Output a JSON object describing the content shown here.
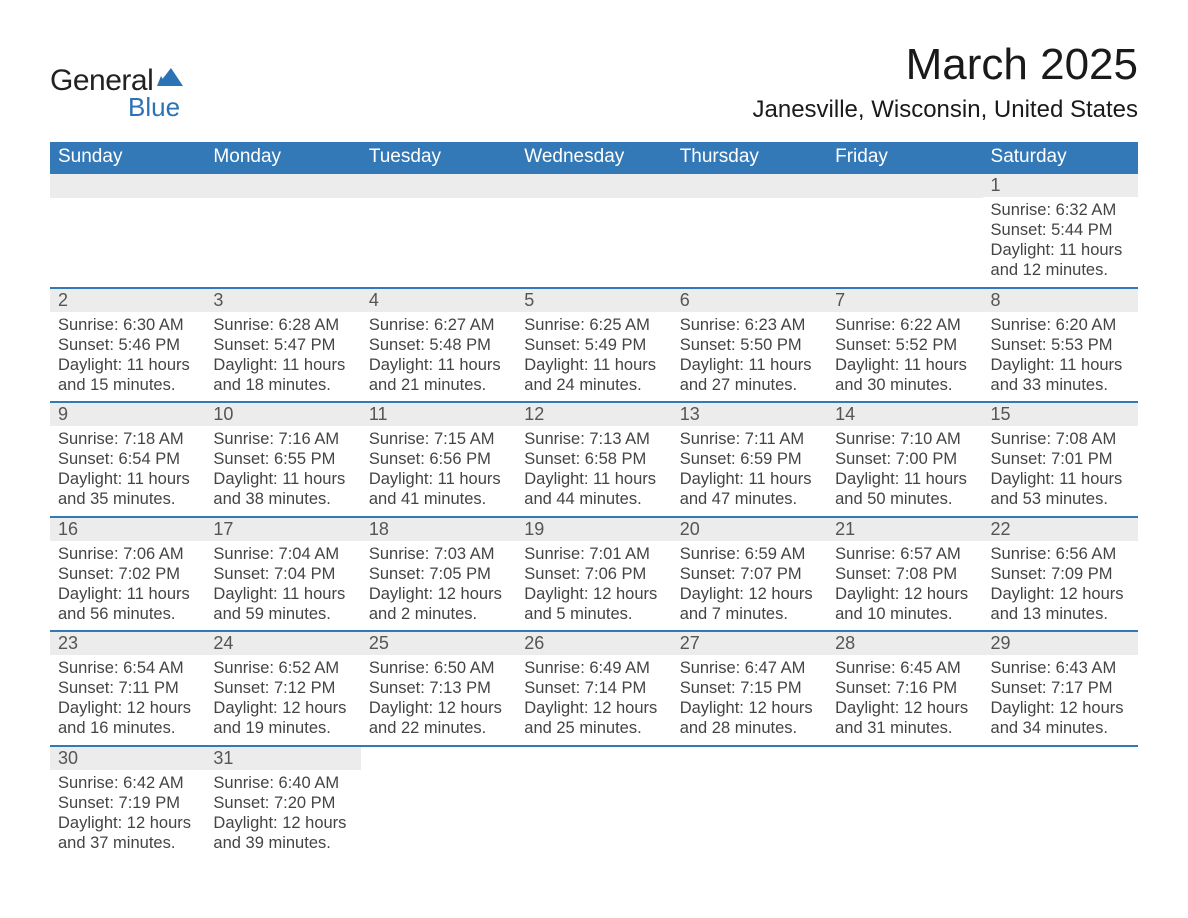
{
  "logo": {
    "general": "General",
    "blue": "Blue",
    "flag_color": "#2b73b5"
  },
  "title": "March 2025",
  "location": "Janesville, Wisconsin, United States",
  "colors": {
    "header_bg": "#3379b7",
    "header_text": "#ffffff",
    "daynum_bg": "#ececec",
    "daynum_text": "#555555",
    "body_text": "#444444",
    "row_border": "#3379b7"
  },
  "days_of_week": [
    "Sunday",
    "Monday",
    "Tuesday",
    "Wednesday",
    "Thursday",
    "Friday",
    "Saturday"
  ],
  "weeks": [
    [
      null,
      null,
      null,
      null,
      null,
      null,
      {
        "n": "1",
        "sr": "Sunrise: 6:32 AM",
        "ss": "Sunset: 5:44 PM",
        "d1": "Daylight: 11 hours",
        "d2": "and 12 minutes."
      }
    ],
    [
      {
        "n": "2",
        "sr": "Sunrise: 6:30 AM",
        "ss": "Sunset: 5:46 PM",
        "d1": "Daylight: 11 hours",
        "d2": "and 15 minutes."
      },
      {
        "n": "3",
        "sr": "Sunrise: 6:28 AM",
        "ss": "Sunset: 5:47 PM",
        "d1": "Daylight: 11 hours",
        "d2": "and 18 minutes."
      },
      {
        "n": "4",
        "sr": "Sunrise: 6:27 AM",
        "ss": "Sunset: 5:48 PM",
        "d1": "Daylight: 11 hours",
        "d2": "and 21 minutes."
      },
      {
        "n": "5",
        "sr": "Sunrise: 6:25 AM",
        "ss": "Sunset: 5:49 PM",
        "d1": "Daylight: 11 hours",
        "d2": "and 24 minutes."
      },
      {
        "n": "6",
        "sr": "Sunrise: 6:23 AM",
        "ss": "Sunset: 5:50 PM",
        "d1": "Daylight: 11 hours",
        "d2": "and 27 minutes."
      },
      {
        "n": "7",
        "sr": "Sunrise: 6:22 AM",
        "ss": "Sunset: 5:52 PM",
        "d1": "Daylight: 11 hours",
        "d2": "and 30 minutes."
      },
      {
        "n": "8",
        "sr": "Sunrise: 6:20 AM",
        "ss": "Sunset: 5:53 PM",
        "d1": "Daylight: 11 hours",
        "d2": "and 33 minutes."
      }
    ],
    [
      {
        "n": "9",
        "sr": "Sunrise: 7:18 AM",
        "ss": "Sunset: 6:54 PM",
        "d1": "Daylight: 11 hours",
        "d2": "and 35 minutes."
      },
      {
        "n": "10",
        "sr": "Sunrise: 7:16 AM",
        "ss": "Sunset: 6:55 PM",
        "d1": "Daylight: 11 hours",
        "d2": "and 38 minutes."
      },
      {
        "n": "11",
        "sr": "Sunrise: 7:15 AM",
        "ss": "Sunset: 6:56 PM",
        "d1": "Daylight: 11 hours",
        "d2": "and 41 minutes."
      },
      {
        "n": "12",
        "sr": "Sunrise: 7:13 AM",
        "ss": "Sunset: 6:58 PM",
        "d1": "Daylight: 11 hours",
        "d2": "and 44 minutes."
      },
      {
        "n": "13",
        "sr": "Sunrise: 7:11 AM",
        "ss": "Sunset: 6:59 PM",
        "d1": "Daylight: 11 hours",
        "d2": "and 47 minutes."
      },
      {
        "n": "14",
        "sr": "Sunrise: 7:10 AM",
        "ss": "Sunset: 7:00 PM",
        "d1": "Daylight: 11 hours",
        "d2": "and 50 minutes."
      },
      {
        "n": "15",
        "sr": "Sunrise: 7:08 AM",
        "ss": "Sunset: 7:01 PM",
        "d1": "Daylight: 11 hours",
        "d2": "and 53 minutes."
      }
    ],
    [
      {
        "n": "16",
        "sr": "Sunrise: 7:06 AM",
        "ss": "Sunset: 7:02 PM",
        "d1": "Daylight: 11 hours",
        "d2": "and 56 minutes."
      },
      {
        "n": "17",
        "sr": "Sunrise: 7:04 AM",
        "ss": "Sunset: 7:04 PM",
        "d1": "Daylight: 11 hours",
        "d2": "and 59 minutes."
      },
      {
        "n": "18",
        "sr": "Sunrise: 7:03 AM",
        "ss": "Sunset: 7:05 PM",
        "d1": "Daylight: 12 hours",
        "d2": "and 2 minutes."
      },
      {
        "n": "19",
        "sr": "Sunrise: 7:01 AM",
        "ss": "Sunset: 7:06 PM",
        "d1": "Daylight: 12 hours",
        "d2": "and 5 minutes."
      },
      {
        "n": "20",
        "sr": "Sunrise: 6:59 AM",
        "ss": "Sunset: 7:07 PM",
        "d1": "Daylight: 12 hours",
        "d2": "and 7 minutes."
      },
      {
        "n": "21",
        "sr": "Sunrise: 6:57 AM",
        "ss": "Sunset: 7:08 PM",
        "d1": "Daylight: 12 hours",
        "d2": "and 10 minutes."
      },
      {
        "n": "22",
        "sr": "Sunrise: 6:56 AM",
        "ss": "Sunset: 7:09 PM",
        "d1": "Daylight: 12 hours",
        "d2": "and 13 minutes."
      }
    ],
    [
      {
        "n": "23",
        "sr": "Sunrise: 6:54 AM",
        "ss": "Sunset: 7:11 PM",
        "d1": "Daylight: 12 hours",
        "d2": "and 16 minutes."
      },
      {
        "n": "24",
        "sr": "Sunrise: 6:52 AM",
        "ss": "Sunset: 7:12 PM",
        "d1": "Daylight: 12 hours",
        "d2": "and 19 minutes."
      },
      {
        "n": "25",
        "sr": "Sunrise: 6:50 AM",
        "ss": "Sunset: 7:13 PM",
        "d1": "Daylight: 12 hours",
        "d2": "and 22 minutes."
      },
      {
        "n": "26",
        "sr": "Sunrise: 6:49 AM",
        "ss": "Sunset: 7:14 PM",
        "d1": "Daylight: 12 hours",
        "d2": "and 25 minutes."
      },
      {
        "n": "27",
        "sr": "Sunrise: 6:47 AM",
        "ss": "Sunset: 7:15 PM",
        "d1": "Daylight: 12 hours",
        "d2": "and 28 minutes."
      },
      {
        "n": "28",
        "sr": "Sunrise: 6:45 AM",
        "ss": "Sunset: 7:16 PM",
        "d1": "Daylight: 12 hours",
        "d2": "and 31 minutes."
      },
      {
        "n": "29",
        "sr": "Sunrise: 6:43 AM",
        "ss": "Sunset: 7:17 PM",
        "d1": "Daylight: 12 hours",
        "d2": "and 34 minutes."
      }
    ],
    [
      {
        "n": "30",
        "sr": "Sunrise: 6:42 AM",
        "ss": "Sunset: 7:19 PM",
        "d1": "Daylight: 12 hours",
        "d2": "and 37 minutes."
      },
      {
        "n": "31",
        "sr": "Sunrise: 6:40 AM",
        "ss": "Sunset: 7:20 PM",
        "d1": "Daylight: 12 hours",
        "d2": "and 39 minutes."
      },
      null,
      null,
      null,
      null,
      null
    ]
  ]
}
